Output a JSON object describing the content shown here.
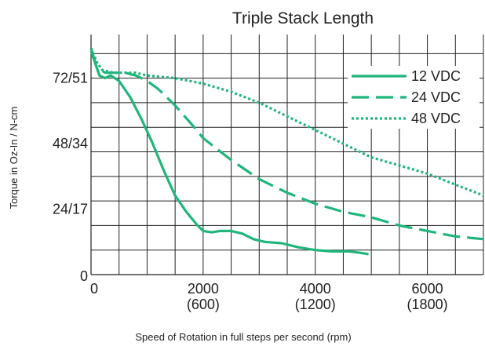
{
  "chart_data": {
    "type": "line",
    "title": "Triple Stack Length",
    "xlabel": "Speed of Rotation in full steps per second (rpm)",
    "ylabel": "Torque in Oz-In / N-cm",
    "xlim": [
      0,
      7000
    ],
    "ylim": [
      0,
      88
    ],
    "grid": true,
    "legend_position": "top-right",
    "x_ticks": [
      {
        "value": 0,
        "label": "0",
        "sublabel": ""
      },
      {
        "value": 2000,
        "label": "2000",
        "sublabel": "(600)"
      },
      {
        "value": 4000,
        "label": "4000",
        "sublabel": "(1200)"
      },
      {
        "value": 6000,
        "label": "6000",
        "sublabel": "(1800)"
      }
    ],
    "y_ticks": [
      {
        "value": 0,
        "label": "0"
      },
      {
        "value": 24,
        "label": "24/17"
      },
      {
        "value": 48,
        "label": "48/34"
      },
      {
        "value": 72,
        "label": "72/51"
      }
    ],
    "grid_x": [
      0,
      500,
      1000,
      1500,
      2000,
      2500,
      3000,
      3500,
      4000,
      4500,
      5000,
      5500,
      6000,
      6500,
      7000
    ],
    "grid_y": [
      0,
      9,
      18,
      27,
      36,
      45,
      54,
      63,
      72,
      81
    ],
    "series": [
      {
        "name": "12 VDC",
        "color": "#1fb57b",
        "dash": "solid",
        "x": [
          0,
          100,
          150,
          250,
          350,
          500,
          700,
          900,
          1100,
          1300,
          1500,
          1700,
          1900,
          2000,
          2150,
          2300,
          2500,
          2700,
          2900,
          3100,
          3400,
          3700,
          4000,
          4300,
          4600,
          4800,
          4950
        ],
        "y": [
          83,
          76,
          73,
          72,
          73,
          71,
          65,
          57,
          48,
          38,
          29,
          23,
          18,
          16,
          15.5,
          16,
          16,
          15,
          13,
          12,
          11.5,
          10,
          9,
          8.5,
          8.5,
          8,
          7.5
        ]
      },
      {
        "name": "24 VDC",
        "color": "#1fb57b",
        "dash": "dashed",
        "x": [
          0,
          100,
          250,
          400,
          600,
          800,
          1000,
          1200,
          1500,
          1800,
          2000,
          2500,
          3000,
          3500,
          4000,
          4500,
          5000,
          5500,
          6000,
          6500,
          7000
        ],
        "y": [
          82,
          76,
          74,
          74,
          74,
          73,
          71,
          68,
          62,
          55,
          50,
          42,
          35,
          30,
          26,
          23,
          21,
          18,
          16,
          14,
          13
        ]
      },
      {
        "name": "48 VDC",
        "color": "#1fb57b",
        "dash": "dotted",
        "x": [
          0,
          100,
          200,
          400,
          600,
          800,
          1000,
          1500,
          2000,
          2500,
          3000,
          3500,
          4000,
          4500,
          5000,
          5500,
          6000,
          6500,
          7000
        ],
        "y": [
          83,
          78,
          75,
          74,
          74,
          74,
          73,
          72,
          70,
          67,
          63,
          58,
          53,
          48,
          43,
          40,
          37,
          33,
          29
        ]
      }
    ]
  }
}
